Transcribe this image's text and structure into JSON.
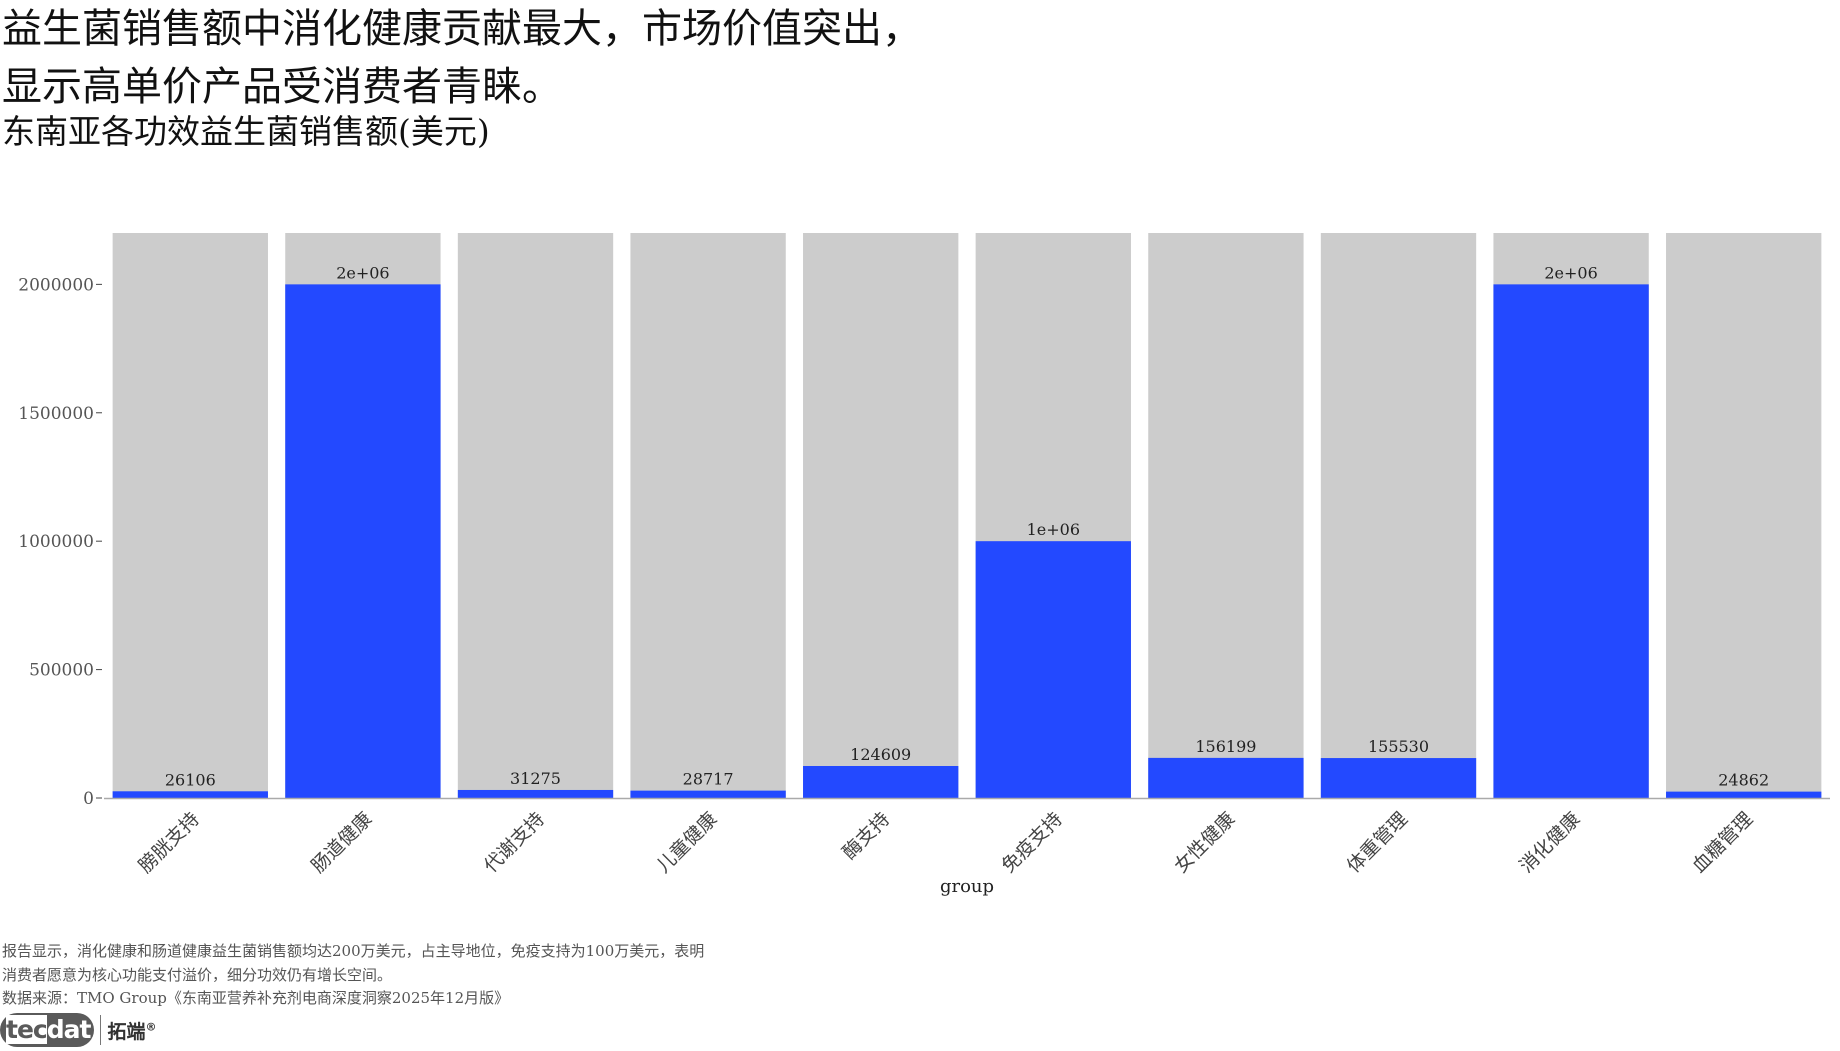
{
  "header": {
    "title_line1": "益生菌销售额中消化健康贡献最大，市场价值突出，",
    "title_line2": "显示高单价产品受消费者青睐。",
    "subtitle": "东南亚各功效益生菌销售额(美元)"
  },
  "chart_data": {
    "type": "bar",
    "categories": [
      "膀胱支持",
      "肠道健康",
      "代谢支持",
      "儿童健康",
      "酶支持",
      "免疫支持",
      "女性健康",
      "体重管理",
      "消化健康",
      "血糖管理"
    ],
    "values": [
      26106,
      2000000,
      31275,
      28717,
      124609,
      1000000,
      156199,
      155530,
      2000000,
      24862
    ],
    "data_labels": [
      "26106",
      "2e+06",
      "31275",
      "28717",
      "124609",
      "1e+06",
      "156199",
      "155530",
      "2e+06",
      "24862"
    ],
    "background_max": 2200000,
    "xlabel": "group",
    "ylabel": "",
    "ylim": [
      0,
      2200000
    ],
    "yticks": [
      0,
      500000,
      1000000,
      1500000,
      2000000
    ],
    "ytick_labels": [
      "0",
      "500000",
      "1000000",
      "1500000",
      "2000000"
    ],
    "grid": false,
    "bar_color": "#2349ff",
    "background_bar_color": "#cccccc"
  },
  "caption": {
    "line1": "报告显示，消化健康和肠道健康益生菌销售额均达200万美元，占主导地位，免疫支持为100万美元，表明",
    "line2": "消费者愿意为核心功能支付溢价，细分功效仍有增长空间。",
    "source": "数据来源：TMO Group《东南亚营养补充剂电商深度洞察2025年12月版》"
  },
  "logo": {
    "mark_a": "tec",
    "mark_b": "dat",
    "cn": "拓端",
    "reg": "®"
  }
}
